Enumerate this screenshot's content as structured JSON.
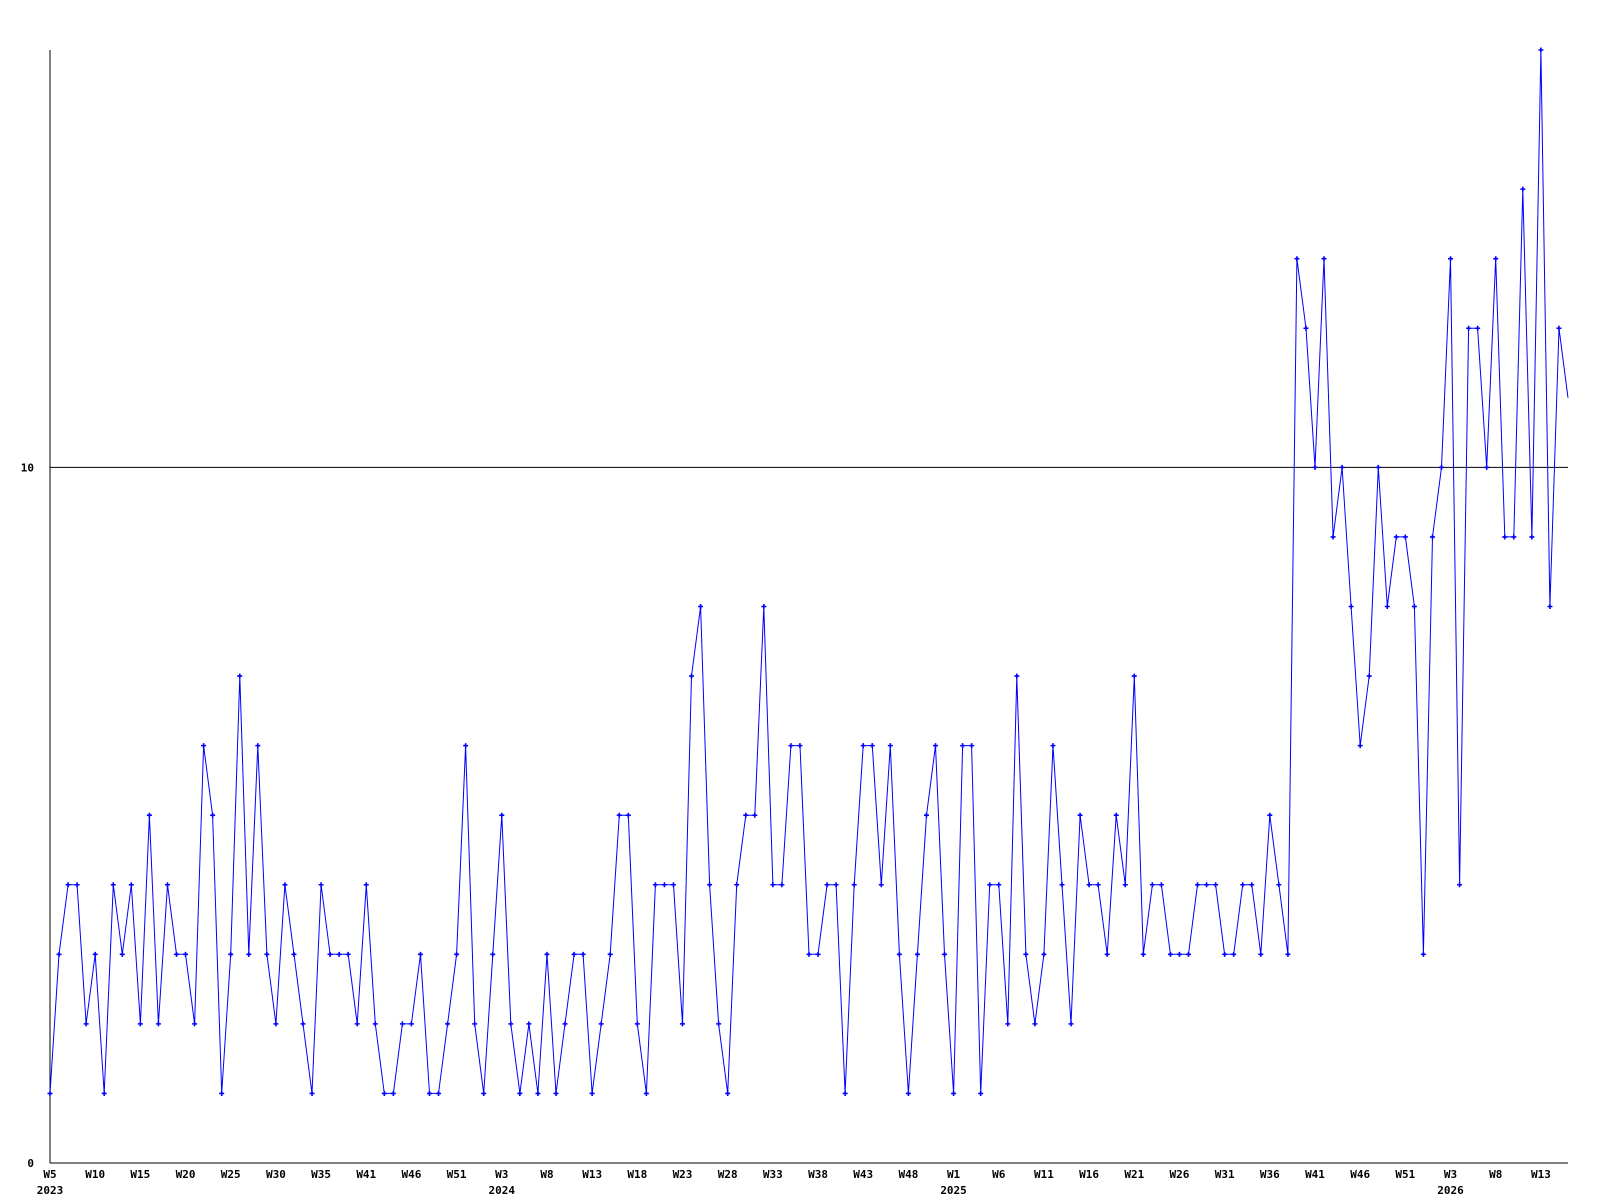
{
  "chart_data": {
    "type": "line",
    "title": "",
    "xlabel": "",
    "ylabel": "",
    "ylim": [
      0,
      16
    ],
    "grid": false,
    "legend": "none",
    "series_color": "#0000ff",
    "reference_line": {
      "y": 10,
      "color": "#000000"
    },
    "y_ticks": [
      {
        "label": "0",
        "value": 0
      },
      {
        "label": "10",
        "value": 10
      }
    ],
    "x_ticks": [
      {
        "label": "W5",
        "at": 0,
        "year": "2023"
      },
      {
        "label": "W10",
        "at": 5
      },
      {
        "label": "W15",
        "at": 10
      },
      {
        "label": "W20",
        "at": 15
      },
      {
        "label": "W25",
        "at": 20
      },
      {
        "label": "W30",
        "at": 25
      },
      {
        "label": "W35",
        "at": 30
      },
      {
        "label": "W41",
        "at": 35
      },
      {
        "label": "W46",
        "at": 40
      },
      {
        "label": "W51",
        "at": 45
      },
      {
        "label": "W3",
        "at": 50,
        "year": "2024"
      },
      {
        "label": "W8",
        "at": 55
      },
      {
        "label": "W13",
        "at": 60
      },
      {
        "label": "W18",
        "at": 65
      },
      {
        "label": "W23",
        "at": 70
      },
      {
        "label": "W28",
        "at": 75
      },
      {
        "label": "W33",
        "at": 80
      },
      {
        "label": "W38",
        "at": 85
      },
      {
        "label": "W43",
        "at": 90
      },
      {
        "label": "W48",
        "at": 95
      },
      {
        "label": "W1",
        "at": 100,
        "year": "2025"
      },
      {
        "label": "W6",
        "at": 105
      },
      {
        "label": "W11",
        "at": 110
      },
      {
        "label": "W16",
        "at": 115
      },
      {
        "label": "W21",
        "at": 120
      },
      {
        "label": "W26",
        "at": 125
      },
      {
        "label": "W31",
        "at": 130
      },
      {
        "label": "W36",
        "at": 135
      },
      {
        "label": "W41",
        "at": 140
      },
      {
        "label": "W46",
        "at": 145
      },
      {
        "label": "W51",
        "at": 150
      },
      {
        "label": "W3",
        "at": 155,
        "year": "2026"
      },
      {
        "label": "W8",
        "at": 160
      },
      {
        "label": "W13",
        "at": 165
      }
    ],
    "values": [
      1,
      3,
      4,
      4,
      2,
      3,
      1,
      4,
      3,
      4,
      2,
      5,
      2,
      4,
      3,
      3,
      2,
      6,
      5,
      1,
      3,
      7,
      3,
      6,
      3,
      2,
      4,
      3,
      2,
      1,
      4,
      3,
      3,
      3,
      2,
      4,
      2,
      1,
      1,
      2,
      2,
      3,
      1,
      1,
      2,
      3,
      6,
      2,
      1,
      3,
      5,
      2,
      1,
      2,
      1,
      3,
      1,
      2,
      3,
      3,
      1,
      2,
      3,
      5,
      5,
      2,
      1,
      4,
      4,
      4,
      2,
      7,
      8,
      4,
      2,
      1,
      4,
      5,
      5,
      8,
      4,
      4,
      6,
      6,
      3,
      3,
      4,
      4,
      1,
      4,
      6,
      6,
      4,
      6,
      3,
      1,
      3,
      5,
      6,
      3,
      1,
      6,
      6,
      1,
      4,
      4,
      2,
      7,
      3,
      2,
      3,
      6,
      4,
      2,
      5,
      4,
      4,
      3,
      5,
      4,
      7,
      3,
      4,
      4,
      3,
      3,
      3,
      4,
      4,
      4,
      3,
      3,
      4,
      4,
      3,
      5,
      4,
      3,
      13,
      12,
      10,
      13,
      9,
      10,
      8,
      6,
      7,
      10,
      8,
      9,
      9,
      8,
      3,
      9,
      10,
      13,
      4,
      12,
      12,
      10,
      13,
      9,
      9,
      14,
      9,
      16,
      8,
      12,
      11
    ]
  }
}
